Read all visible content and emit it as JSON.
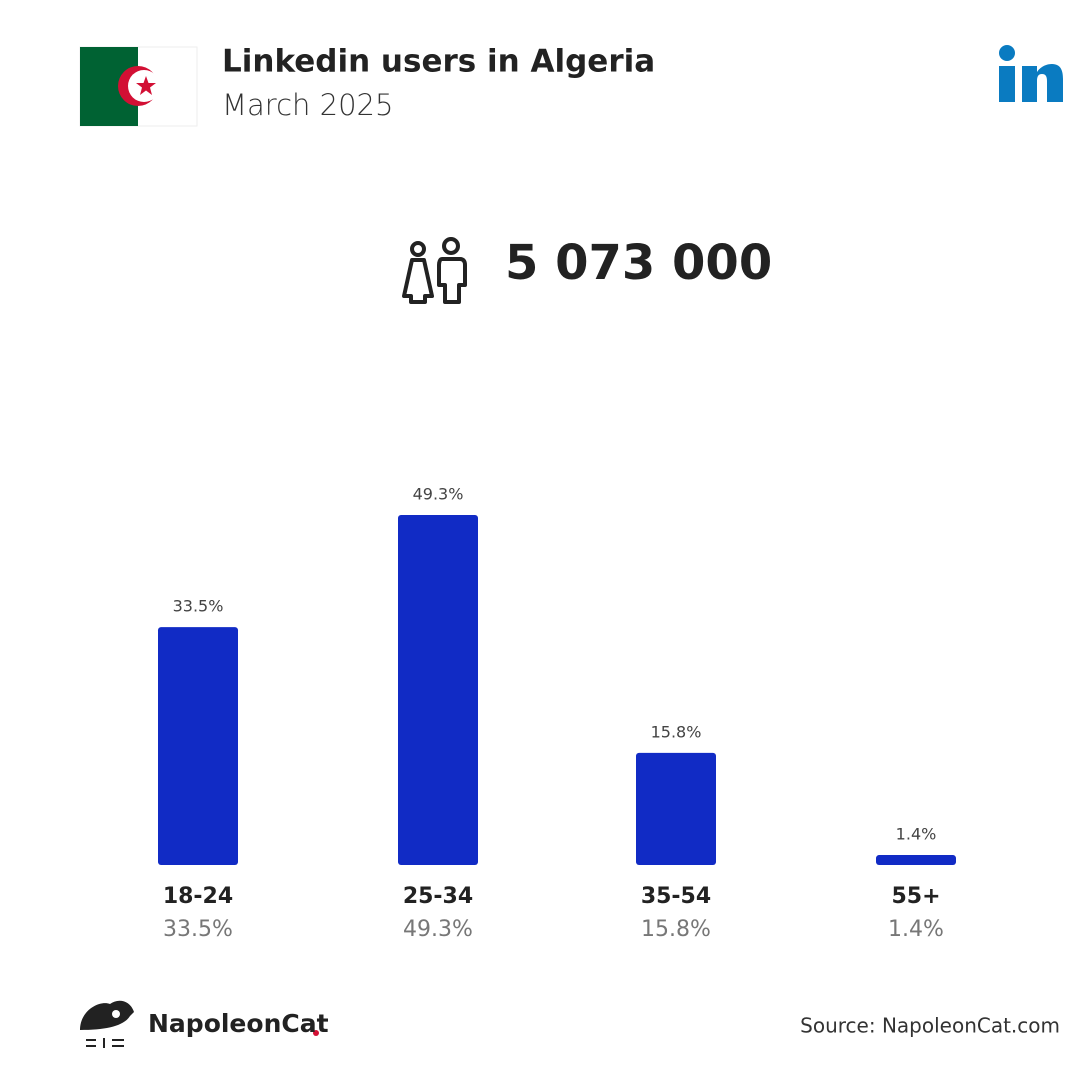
{
  "chart_data": {
    "type": "bar",
    "title": "Linkedin users in Algeria",
    "subtitle": "March 2025",
    "total": "5 073 000",
    "categories": [
      "18-24",
      "25-34",
      "35-54",
      "55+"
    ],
    "values": [
      33.5,
      49.3,
      15.8,
      1.4
    ],
    "value_labels": [
      "33.5%",
      "49.3%",
      "15.8%",
      "1.4%"
    ],
    "color": "#112bc5",
    "brand": "NapoleonCat",
    "source": "Source: NapoleonCat.com"
  }
}
